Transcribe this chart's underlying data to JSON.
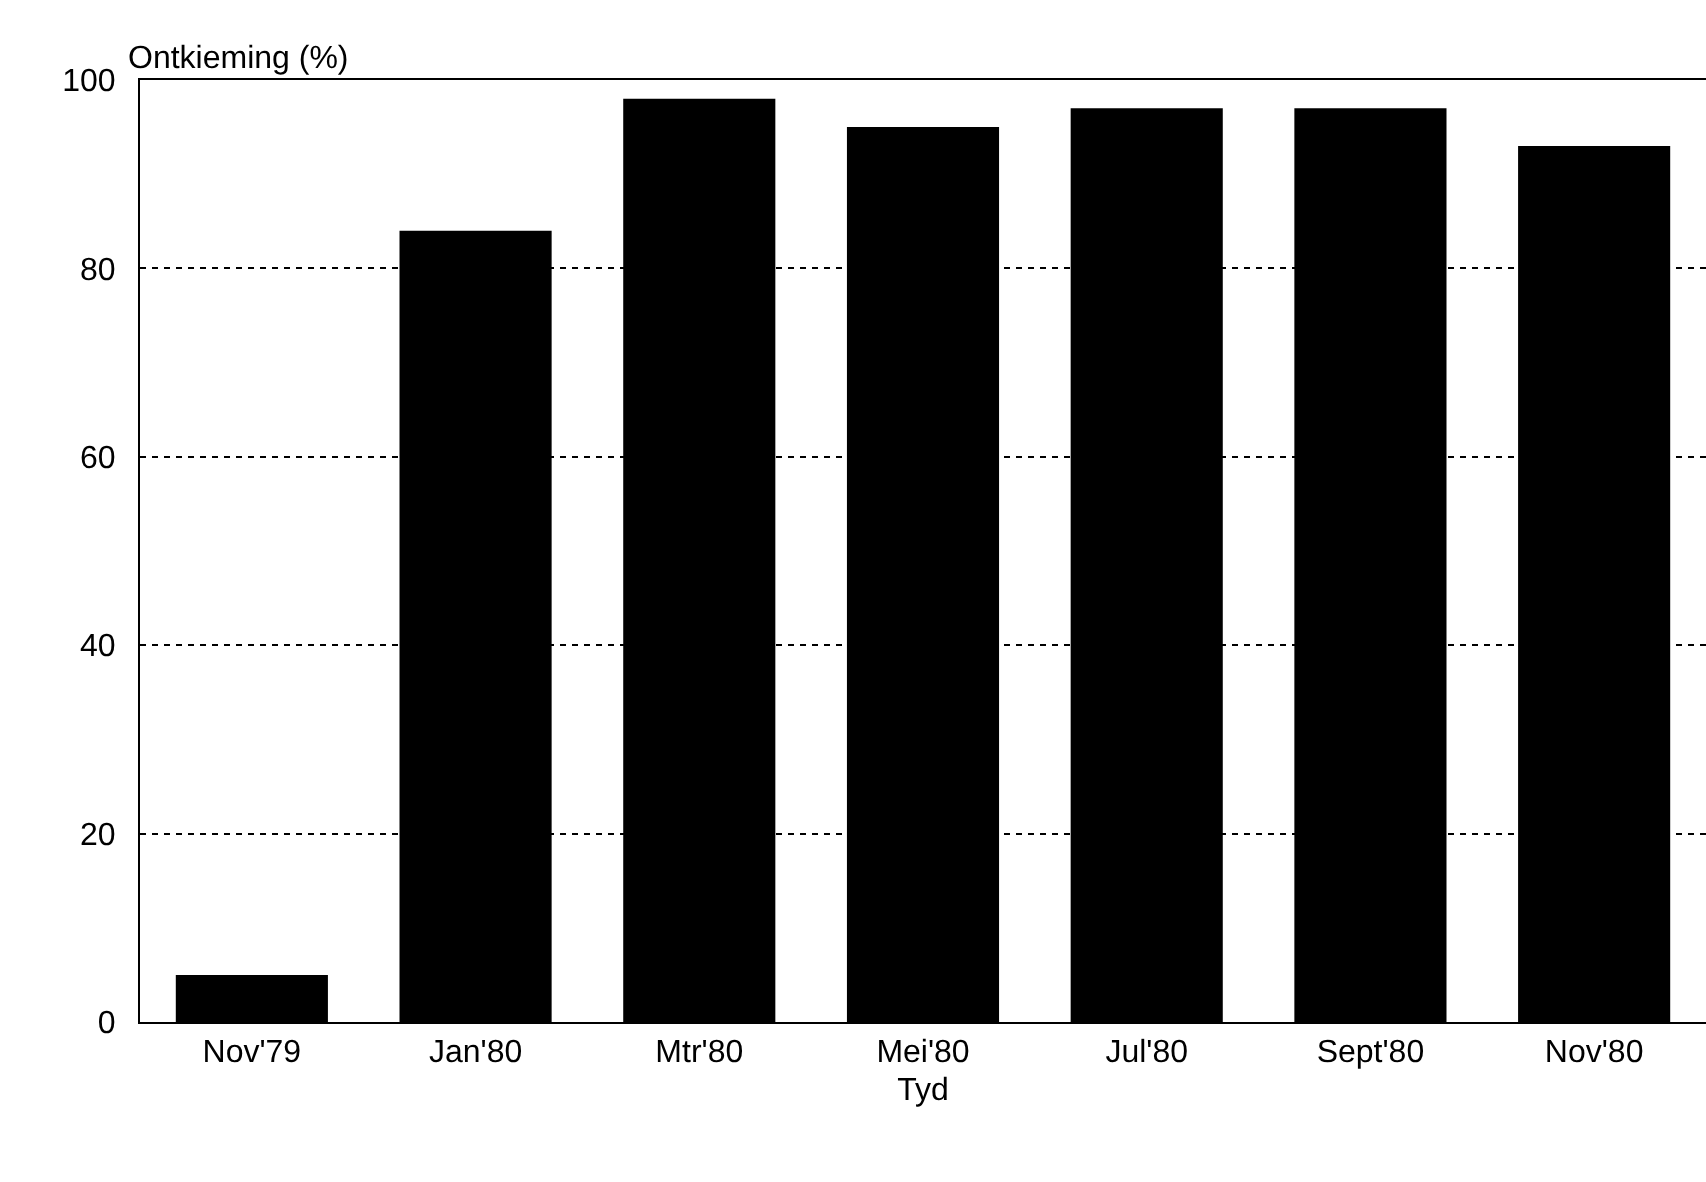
{
  "chart_data": {
    "type": "bar",
    "ylabel": "Ontkieming (%)",
    "xlabel": "Tyd",
    "categories": [
      "Nov'79",
      "Jan'80",
      "Mtr'80",
      "Mei'80",
      "Jul'80",
      "Sept'80",
      "Nov'80"
    ],
    "values": [
      5,
      84,
      98,
      95,
      97,
      97,
      93
    ],
    "color": "#000000",
    "ylim": [
      0,
      100
    ],
    "yticks": [
      0,
      20,
      40,
      60,
      80,
      100
    ],
    "grid": "y"
  }
}
